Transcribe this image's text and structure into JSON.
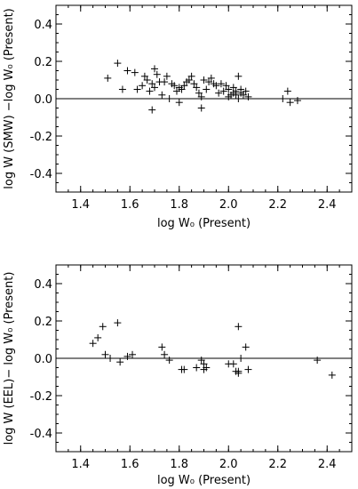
{
  "chart_data": [
    {
      "type": "scatter",
      "xlabel": "log W₀ (Present)",
      "ylabel": "log W (SMW) −log W₀ (Present)",
      "xlim": [
        1.3,
        2.5
      ],
      "ylim": [
        -0.5,
        0.5
      ],
      "xticks": [
        "1.4",
        "1.6",
        "1.8",
        "2.0",
        "2.2",
        "2.4"
      ],
      "yticks": [
        "-0.4",
        "-0.2",
        "0.0",
        "0.2",
        "0.4"
      ],
      "reference_line_y": 0.0,
      "series": [
        {
          "marker": "+",
          "x": [
            1.51,
            1.55,
            1.57,
            1.59,
            1.62,
            1.63,
            1.65,
            1.66,
            1.67,
            1.68,
            1.69,
            1.69,
            1.7,
            1.71,
            1.72,
            1.73,
            1.74,
            1.75,
            1.76,
            1.77,
            1.78,
            1.79,
            1.8,
            1.81,
            1.82,
            1.83,
            1.84,
            1.85,
            1.86,
            1.87,
            1.88,
            1.89,
            1.9,
            1.91,
            1.92,
            1.93,
            1.94,
            1.95,
            1.96,
            1.97,
            1.98,
            1.99,
            2.0,
            2.0,
            2.01,
            2.02,
            2.02,
            2.03,
            2.03,
            2.04,
            2.04,
            2.05,
            2.05,
            2.06,
            2.07,
            2.08,
            2.22,
            2.24,
            2.25,
            2.28,
            1.7,
            1.8,
            1.89
          ],
          "y": [
            0.11,
            0.19,
            0.05,
            0.15,
            0.14,
            0.05,
            0.07,
            0.12,
            0.1,
            0.04,
            0.08,
            -0.06,
            0.16,
            0.13,
            0.09,
            0.02,
            0.09,
            0.12,
            0.0,
            0.08,
            0.07,
            0.04,
            0.06,
            0.05,
            0.07,
            0.09,
            0.1,
            0.12,
            0.08,
            0.06,
            0.03,
            0.01,
            0.1,
            0.05,
            0.09,
            0.11,
            0.08,
            0.07,
            0.03,
            0.08,
            0.04,
            0.07,
            0.05,
            0.01,
            0.02,
            0.06,
            0.03,
            0.04,
            0.02,
            0.12,
            0.0,
            0.03,
            0.05,
            0.02,
            0.04,
            0.01,
            0.0,
            0.04,
            -0.02,
            -0.01,
            0.06,
            -0.02,
            -0.05
          ]
        }
      ]
    },
    {
      "type": "scatter",
      "xlabel": "log W₀ (Present)",
      "ylabel": "log W (EEL)− log W₀ (Present)",
      "xlim": [
        1.3,
        2.5
      ],
      "ylim": [
        -0.5,
        0.5
      ],
      "xticks": [
        "1.4",
        "1.6",
        "1.8",
        "2.0",
        "2.2",
        "2.4"
      ],
      "yticks": [
        "-0.4",
        "-0.2",
        "0.0",
        "0.2",
        "0.4"
      ],
      "reference_line_y": 0.0,
      "series": [
        {
          "marker": "+",
          "x": [
            1.45,
            1.47,
            1.49,
            1.5,
            1.52,
            1.55,
            1.56,
            1.59,
            1.61,
            1.73,
            1.74,
            1.76,
            1.81,
            1.82,
            1.87,
            1.89,
            1.9,
            1.9,
            1.91,
            2.0,
            2.02,
            2.03,
            2.04,
            2.04,
            2.04,
            2.05,
            2.07,
            2.08,
            2.36,
            2.42
          ],
          "y": [
            0.08,
            0.11,
            0.17,
            0.02,
            0.0,
            0.19,
            -0.02,
            0.01,
            0.02,
            0.06,
            0.02,
            -0.01,
            -0.06,
            -0.06,
            -0.05,
            -0.01,
            -0.03,
            -0.06,
            -0.05,
            -0.03,
            -0.03,
            -0.07,
            -0.08,
            -0.07,
            0.17,
            0.0,
            0.06,
            -0.06,
            -0.01,
            -0.09
          ]
        }
      ]
    }
  ]
}
